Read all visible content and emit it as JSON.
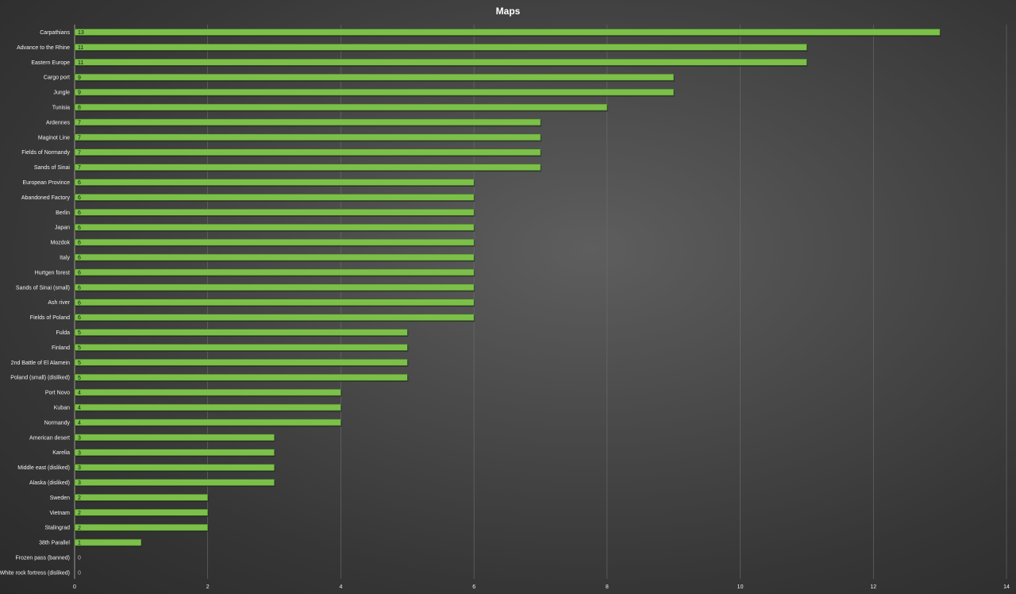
{
  "chart_data": {
    "type": "bar",
    "orientation": "horizontal",
    "title": "Maps",
    "xlabel": "",
    "ylabel": "",
    "xlim": [
      0,
      14
    ],
    "xticks": [
      0,
      2,
      4,
      6,
      8,
      10,
      12,
      14
    ],
    "grid": true,
    "legend": "none",
    "bar_color": "#7cc04a",
    "categories": [
      "Carpathians",
      "Advance to the Rhine",
      "Eastern Europe",
      "Cargo port",
      "Jungle",
      "Tunisia",
      "Ardennes",
      "Maginot Line",
      "Fields of Normandy",
      "Sands of Sinai",
      "European Province",
      "Abandoned Factory",
      "Berlin",
      "Japan",
      "Mozdok",
      "Italy",
      "Hurtgen forest",
      "Sands of Sinai (small)",
      "Ash river",
      "Fields of Poland",
      "Fulda",
      "Finland",
      "2nd Battle of El Alamein",
      "Poland (small) (disliked)",
      "Port Novo",
      "Kuban",
      "Normandy",
      "American desert",
      "Karelia",
      "Middle east (disliked)",
      "Alaska (disliked)",
      "Sweden",
      "Vietnam",
      "Stalingrad",
      "38th Parallel",
      "Frozen pass (banned)",
      "White rock fortress (disliked)"
    ],
    "values": [
      13,
      11,
      11,
      9,
      9,
      8,
      7,
      7,
      7,
      7,
      6,
      6,
      6,
      6,
      6,
      6,
      6,
      6,
      6,
      6,
      5,
      5,
      5,
      5,
      4,
      4,
      4,
      3,
      3,
      3,
      3,
      2,
      2,
      2,
      1,
      0,
      0
    ]
  }
}
